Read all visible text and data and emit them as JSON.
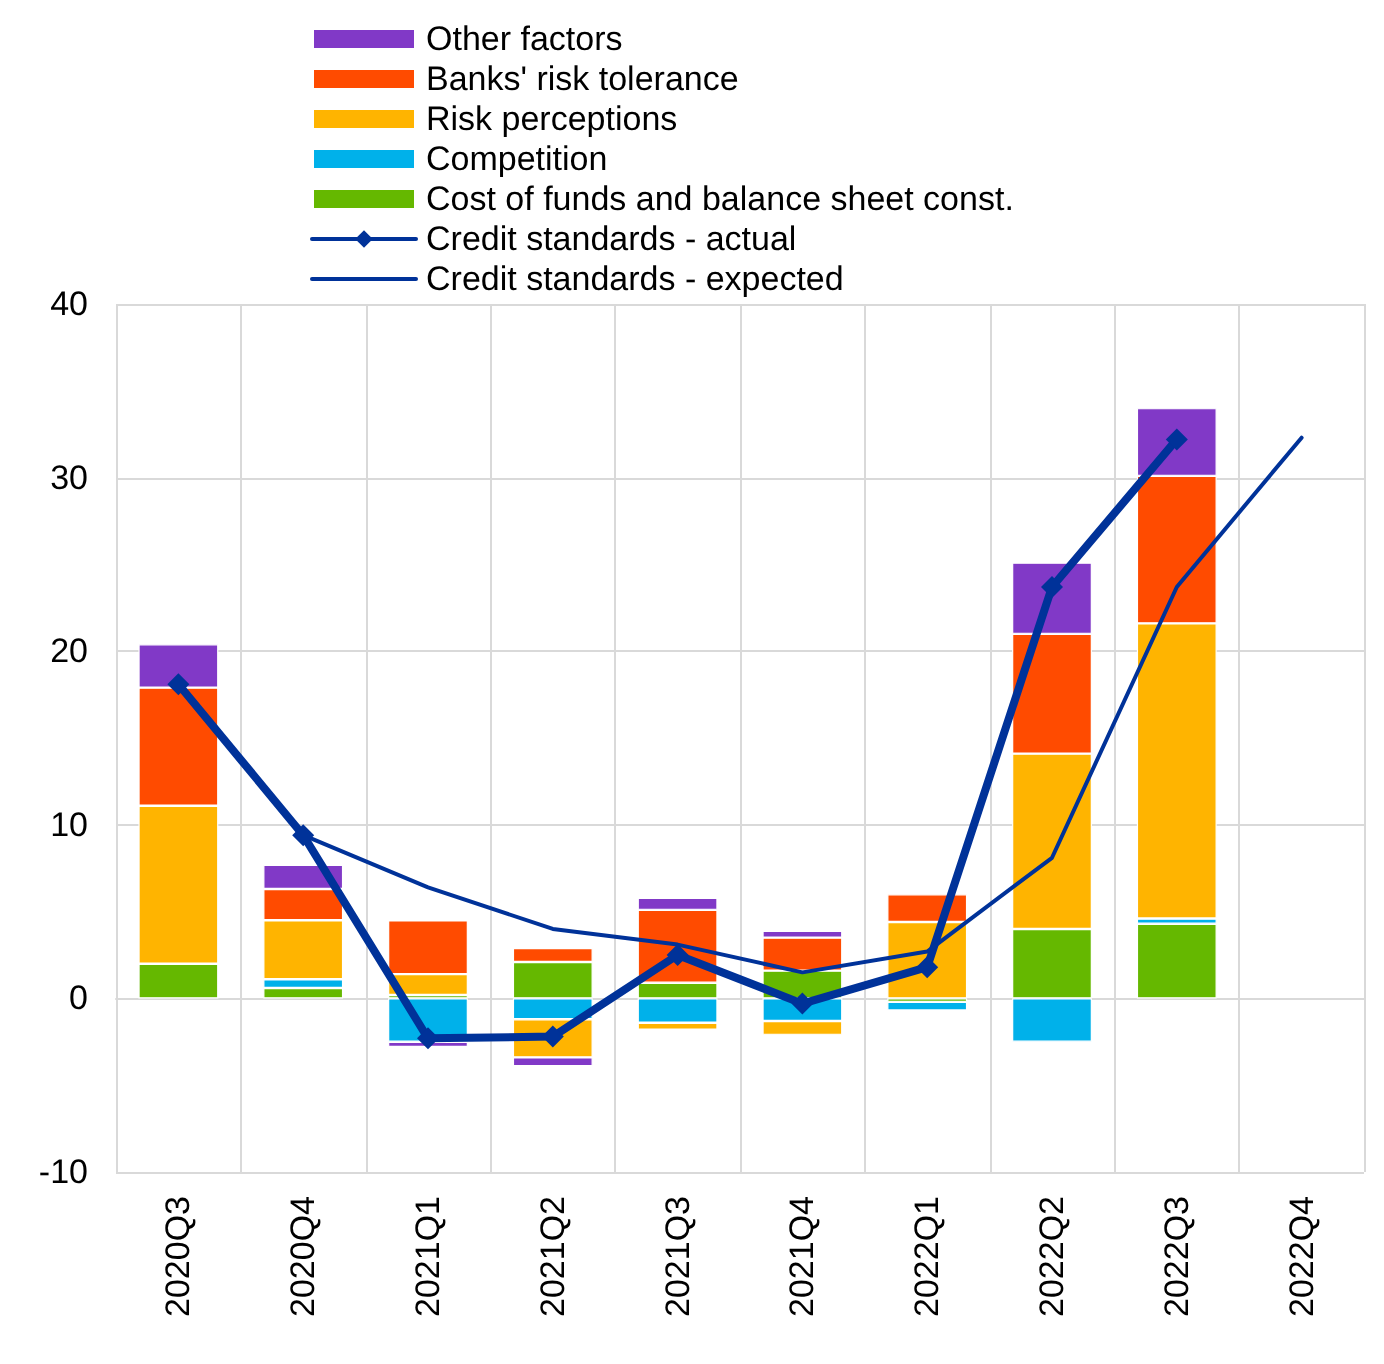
{
  "chart_data": {
    "type": "bar",
    "stacked": true,
    "categories": [
      "2020Q3",
      "2020Q4",
      "2021Q1",
      "2021Q2",
      "2021Q3",
      "2021Q4",
      "2022Q1",
      "2022Q2",
      "2022Q3",
      "2022Q4"
    ],
    "series": [
      {
        "name": "Cost of funds and balance sheet const.",
        "color": "#65b800",
        "values": [
          2.0,
          0.6,
          0.2,
          2.1,
          0.9,
          1.6,
          -0.2,
          4.0,
          4.3,
          null
        ]
      },
      {
        "name": "Competition",
        "color": "#00b1ea",
        "values": [
          null,
          0.5,
          -2.5,
          -1.2,
          -1.4,
          -1.3,
          -0.5,
          -2.5,
          0.3,
          null
        ]
      },
      {
        "name": "Risk perceptions",
        "color": "#ffb400",
        "values": [
          9.1,
          3.4,
          1.2,
          -2.2,
          -0.4,
          -0.8,
          4.4,
          10.1,
          17.0,
          null
        ]
      },
      {
        "name": "Banks' risk tolerance",
        "color": "#ff4b00",
        "values": [
          6.8,
          1.8,
          3.1,
          0.8,
          4.2,
          1.9,
          1.6,
          6.9,
          8.5,
          null
        ]
      },
      {
        "name": "Other factors",
        "color": "#8139c7",
        "values": [
          2.5,
          1.4,
          -0.3,
          -0.5,
          0.7,
          0.4,
          null,
          4.1,
          3.9,
          null
        ]
      },
      {
        "name": "Credit standards - actual",
        "type": "line",
        "color": "#003299",
        "marker": "diamond",
        "values": [
          18.1,
          9.4,
          -2.3,
          -2.2,
          2.5,
          -0.3,
          1.8,
          23.7,
          32.2,
          null
        ]
      },
      {
        "name": "Credit standards - expected",
        "type": "line",
        "color": "#003299",
        "marker": "none",
        "values": [
          null,
          9.4,
          6.4,
          4.0,
          3.1,
          1.5,
          2.7,
          8.1,
          23.7,
          32.3
        ]
      }
    ],
    "ylim": [
      -10,
      40
    ],
    "yticks": [
      -10,
      0,
      10,
      20,
      30,
      40
    ],
    "grid": true,
    "legend": "top"
  }
}
